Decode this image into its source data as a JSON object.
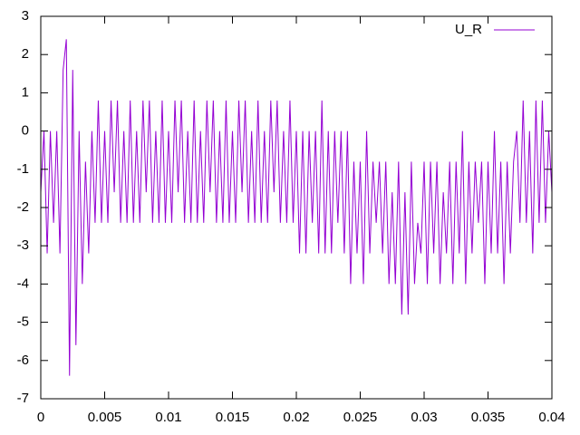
{
  "chart_data": {
    "type": "line",
    "x": [
      0,
      0.00025,
      0.0005,
      0.00075,
      0.001,
      0.00125,
      0.0015,
      0.00175,
      0.002,
      0.00225,
      0.0025,
      0.00275,
      0.003,
      0.00325,
      0.0035,
      0.00375,
      0.004,
      0.00425,
      0.0045,
      0.00475,
      0.005,
      0.00525,
      0.0055,
      0.00575,
      0.006,
      0.00625,
      0.0065,
      0.00675,
      0.007,
      0.00725,
      0.0075,
      0.00775,
      0.008,
      0.00825,
      0.0085,
      0.00875,
      0.009,
      0.00925,
      0.0095,
      0.00975,
      0.01,
      0.01025,
      0.0105,
      0.01075,
      0.011,
      0.01125,
      0.0115,
      0.01175,
      0.012,
      0.01225,
      0.0125,
      0.01275,
      0.013,
      0.01325,
      0.0135,
      0.01375,
      0.014,
      0.01425,
      0.0145,
      0.01475,
      0.015,
      0.01525,
      0.0155,
      0.01575,
      0.016,
      0.01625,
      0.0165,
      0.01675,
      0.017,
      0.01725,
      0.0175,
      0.01775,
      0.018,
      0.01825,
      0.0185,
      0.01875,
      0.019,
      0.01925,
      0.0195,
      0.01975,
      0.02,
      0.02025,
      0.0205,
      0.02075,
      0.021,
      0.02125,
      0.0215,
      0.02175,
      0.022,
      0.02225,
      0.0225,
      0.02275,
      0.023,
      0.02325,
      0.0235,
      0.02375,
      0.024,
      0.02425,
      0.0245,
      0.02475,
      0.025,
      0.02525,
      0.0255,
      0.02575,
      0.026,
      0.02625,
      0.0265,
      0.02675,
      0.027,
      0.02725,
      0.0275,
      0.02775,
      0.028,
      0.02825,
      0.0285,
      0.02875,
      0.029,
      0.02925,
      0.0295,
      0.02975,
      0.03,
      0.03025,
      0.0305,
      0.03075,
      0.031,
      0.03125,
      0.0315,
      0.03175,
      0.032,
      0.03225,
      0.0325,
      0.03275,
      0.033,
      0.03325,
      0.0335,
      0.03375,
      0.034,
      0.03425,
      0.0345,
      0.03475,
      0.035,
      0.03525,
      0.0355,
      0.03575,
      0.036,
      0.03625,
      0.0365,
      0.03675,
      0.037,
      0.03725,
      0.0375,
      0.03775,
      0.038,
      0.03825,
      0.0385,
      0.03875,
      0.039,
      0.03925,
      0.0395,
      0.03975,
      0.04
    ],
    "series": [
      {
        "name": "U_R",
        "color": "#9400d3",
        "values": [
          -1.6,
          0,
          -3.2,
          0,
          -2.4,
          0,
          -3.2,
          1.6,
          2.4,
          -6.4,
          1.6,
          -5.6,
          0,
          -4,
          -0.8,
          -3.2,
          0,
          -2.4,
          0.8,
          -2.4,
          0,
          -2.4,
          0.8,
          -1.6,
          0.8,
          -2.4,
          0,
          -2.4,
          0.8,
          -2.4,
          0,
          -2.4,
          0.8,
          -1.6,
          0.8,
          -2.4,
          0,
          -2.4,
          0.8,
          -2.4,
          0,
          -2.4,
          0.8,
          -1.6,
          0.8,
          -2.4,
          0,
          -2.4,
          0.8,
          -2.4,
          0,
          -2.4,
          0.8,
          -1.6,
          0.8,
          -2.4,
          0,
          -2.4,
          0.8,
          -2.4,
          0,
          -2.4,
          0.8,
          -1.6,
          0.8,
          -2.4,
          0,
          -2.4,
          0.8,
          -2.4,
          0,
          -2.4,
          0.8,
          -1.6,
          0.8,
          -2.4,
          0,
          -2.4,
          0.8,
          -2.4,
          0,
          -3.2,
          0,
          -3.2,
          0,
          -2.4,
          0,
          -3.2,
          0.8,
          -3.2,
          0,
          -3.2,
          0,
          -2.4,
          0,
          -3.2,
          0,
          -4,
          -0.8,
          -3.2,
          -0.8,
          -4,
          0,
          -3.2,
          -0.8,
          -2.4,
          -0.8,
          -3.2,
          -0.8,
          -4,
          -1.6,
          -4,
          -0.8,
          -4.8,
          -1.6,
          -4.8,
          -0.8,
          -4,
          -2.4,
          -3.2,
          -0.8,
          -4,
          -0.8,
          -3.2,
          -0.8,
          -4,
          -1.6,
          -3.2,
          -0.8,
          -4,
          -0.8,
          -3.2,
          0,
          -4,
          -0.8,
          -3.2,
          -0.8,
          -2.4,
          -0.8,
          -4,
          -0.8,
          -3.2,
          0,
          -3.2,
          -0.8,
          -4,
          -0.8,
          -3.2,
          -0.8,
          0,
          -2.4,
          0.8,
          -2.4,
          0,
          -3.2,
          0.8,
          -2.4,
          0.8,
          -2.4,
          0,
          -1.6
        ]
      }
    ],
    "xlim": [
      0,
      0.04
    ],
    "xticks": [
      0,
      0.005,
      0.01,
      0.015,
      0.02,
      0.025,
      0.03,
      0.035,
      0.04
    ],
    "ylim": [
      -7,
      3
    ],
    "yticks": [
      -7,
      -6,
      -5,
      -4,
      -3,
      -2,
      -1,
      0,
      1,
      2,
      3
    ],
    "grid": false,
    "legend": "top-right"
  }
}
